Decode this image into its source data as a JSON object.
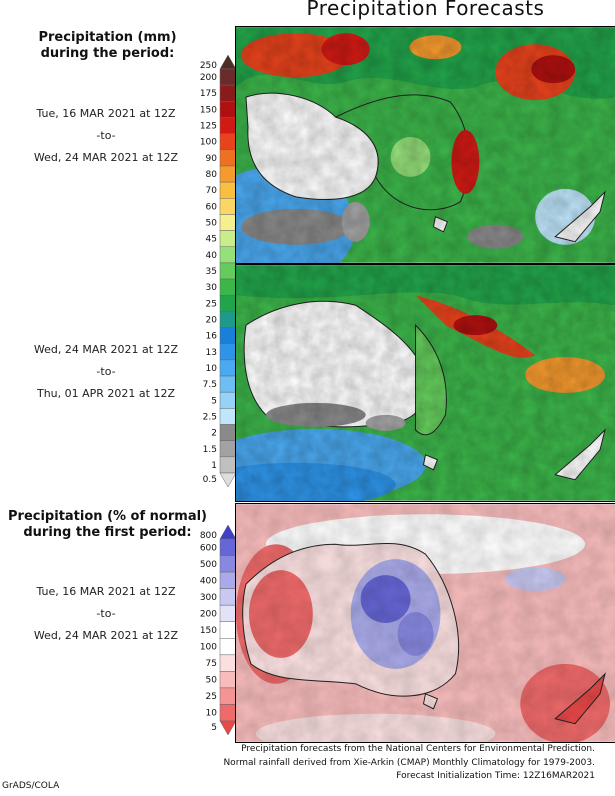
{
  "title": "Precipitation Forecasts",
  "precip_legend": {
    "title_line1": "Precipitation (mm)",
    "title_line2": "during the period:",
    "levels": [
      "250",
      "200",
      "175",
      "150",
      "125",
      "100",
      "90",
      "80",
      "70",
      "60",
      "50",
      "45",
      "40",
      "35",
      "30",
      "25",
      "20",
      "16",
      "13",
      "10",
      "7.5",
      "5",
      "2.5",
      "2",
      "1.5",
      "1",
      "0.5"
    ],
    "colors": [
      "#4e2e24",
      "#6b2b2b",
      "#8b1a1a",
      "#b01010",
      "#d21a14",
      "#e8431c",
      "#f07022",
      "#f59a2e",
      "#fabe40",
      "#fcd664",
      "#f5ef8e",
      "#c8ee8c",
      "#96e07a",
      "#64cc5c",
      "#3cb54a",
      "#22a44a",
      "#1e9a8c",
      "#1a7fd8",
      "#2e94e8",
      "#4aa9f0",
      "#6cbef4",
      "#94d2f8",
      "#bfe6fb",
      "#8a8a8a",
      "#a2a2a2",
      "#c0c0c0",
      "#dedede"
    ]
  },
  "period1": {
    "start": "Tue, 16 MAR 2021 at 12Z",
    "sep": "-to-",
    "end": "Wed, 24 MAR 2021 at 12Z"
  },
  "period2": {
    "start": "Wed, 24 MAR 2021 at 12Z",
    "sep": "-to-",
    "end": "Thu, 01 APR 2021 at 12Z"
  },
  "pct_legend": {
    "title_line1": "Precipitation (% of normal)",
    "title_line2": "during the first period:",
    "levels": [
      "800",
      "600",
      "500",
      "400",
      "300",
      "200",
      "150",
      "100",
      "75",
      "50",
      "25",
      "10",
      "5"
    ],
    "colors": [
      "#4040c8",
      "#6666d6",
      "#8888e0",
      "#aaaaea",
      "#c8c8f2",
      "#e2e2f8",
      "#ffffff",
      "#ffffff",
      "#fbe0e0",
      "#f8bcbc",
      "#f49494",
      "#ef6a6a",
      "#e84848"
    ]
  },
  "period3": {
    "start": "Tue, 16 MAR 2021 at 12Z",
    "sep": "-to-",
    "end": "Wed, 24 MAR 2021 at 12Z"
  },
  "footer": {
    "line1": "Precipitation forecasts from the National Centers for Environmental Prediction.",
    "line2": "Normal rainfall derived from Xie-Arkin (CMAP) Monthly Climatology for 1979-2003.",
    "line3": "Forecast Initialization Time: 12Z16MAR2021"
  },
  "credit": "GrADS/COLA"
}
